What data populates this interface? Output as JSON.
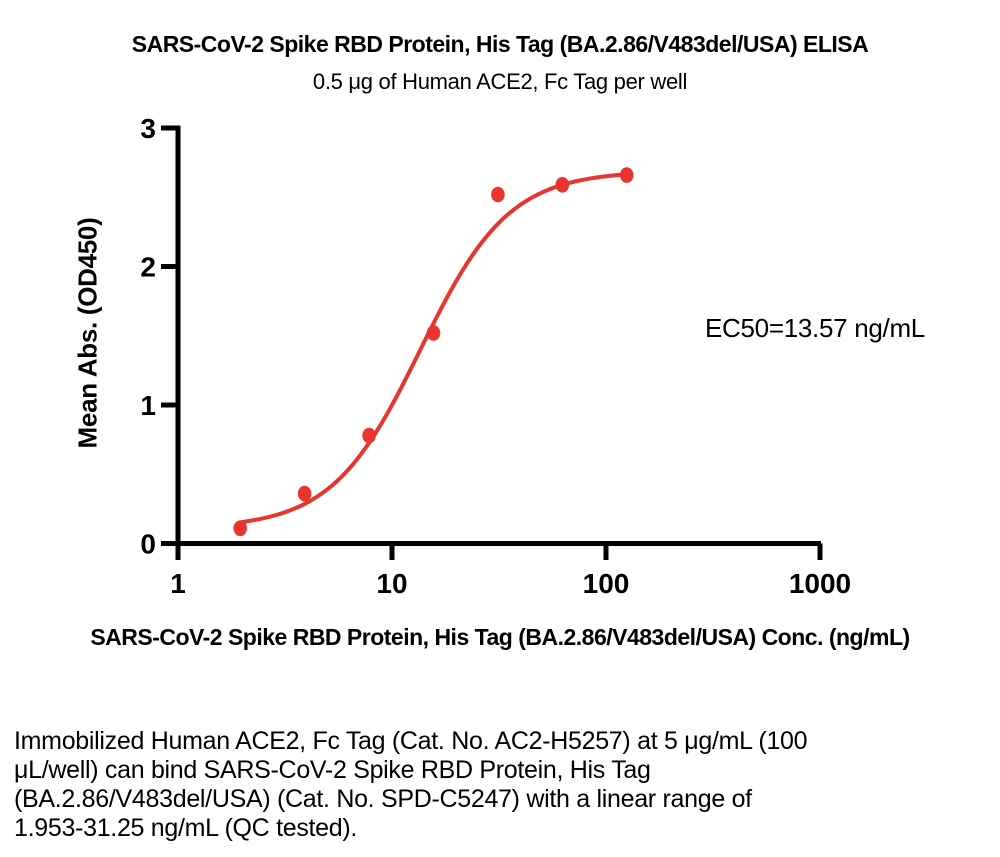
{
  "chart_data": {
    "type": "scatter",
    "title": "SARS-CoV-2 Spike RBD Protein, His Tag (BA.2.86/V483del/USA) ELISA",
    "subtitle": "0.5 μg of Human ACE2, Fc Tag per well",
    "xlabel": "SARS-CoV-2 Spike RBD Protein, His Tag (BA.2.86/V483del/USA) Conc. (ng/mL)",
    "ylabel": "Mean Abs. (OD450)",
    "annotation": "EC50=13.57 ng/mL",
    "x_scale": "log10",
    "xlim": [
      1,
      1000
    ],
    "ylim": [
      0,
      3
    ],
    "x_ticks": [
      1,
      10,
      100,
      1000
    ],
    "y_ticks": [
      0,
      1,
      2,
      3
    ],
    "grid": false,
    "legend": "none",
    "points": {
      "x": [
        1.953,
        3.906,
        7.813,
        15.63,
        31.25,
        62.5,
        125
      ],
      "y": [
        0.11,
        0.36,
        0.78,
        1.52,
        2.52,
        2.59,
        2.66
      ]
    },
    "fit_curve": {
      "model": "4PL",
      "bottom": 0.11,
      "top": 2.69,
      "ec50": 13.57,
      "hill": 2.1,
      "x_range": [
        1.953,
        128
      ]
    },
    "colors": {
      "points": "#E8352F",
      "curve": "#E8352F",
      "axis": "#000000",
      "text": "#000000"
    }
  },
  "caption": {
    "lines": [
      "Immobilized Human ACE2, Fc Tag (Cat. No. AC2-H5257) at 5 μg/mL (100",
      "μL/well) can bind SARS-CoV-2 Spike RBD Protein, His Tag",
      "(BA.2.86/V483del/USA) (Cat. No. SPD-C5247) with a linear range of",
      "1.953-31.25 ng/mL (QC tested)."
    ]
  }
}
